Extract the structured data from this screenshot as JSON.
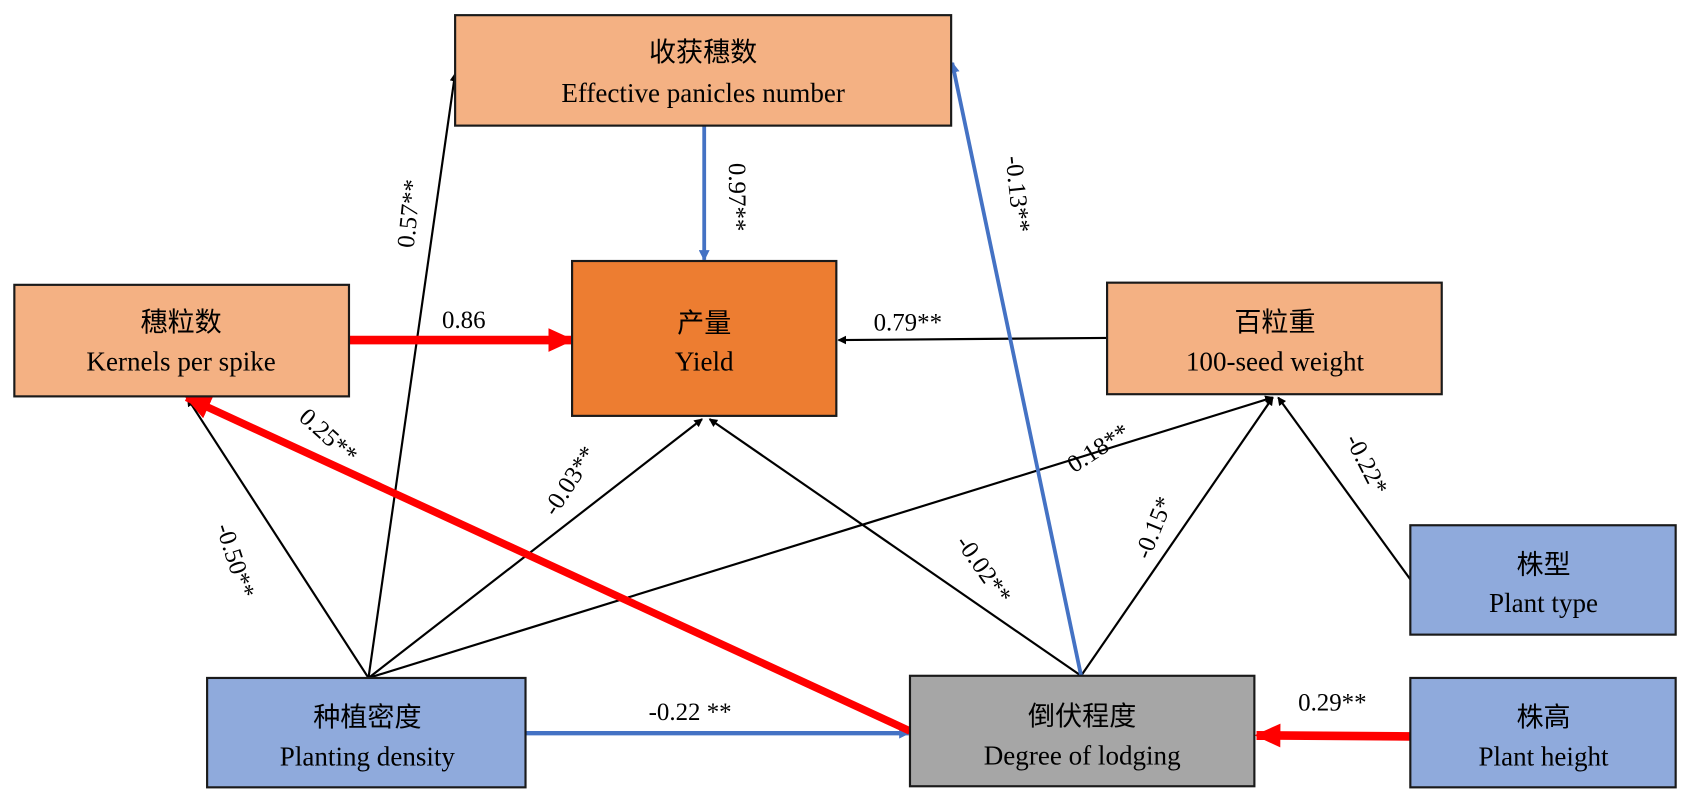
{
  "colors": {
    "outcome": "#ED7D31",
    "component": "#F4B183",
    "factor": "#8FAADC",
    "lodging": "#A6A6A6",
    "positive_strong": "#FF0000",
    "negative": "#4472C4",
    "neutral": "#000000"
  },
  "nodes": {
    "panicles": {
      "zh": "收获穗数",
      "en": "Effective panicles number"
    },
    "yield": {
      "zh": "产量",
      "en": "Yield"
    },
    "kernels": {
      "zh": "穗粒数",
      "en": "Kernels per spike"
    },
    "seed_weight": {
      "zh": "百粒重",
      "en": "100-seed weight"
    },
    "plant_type": {
      "zh": "株型",
      "en": "Plant type"
    },
    "density": {
      "zh": "种植密度",
      "en": "Planting density"
    },
    "lodging": {
      "zh": "倒伏程度",
      "en": "Degree of lodging"
    },
    "plant_height": {
      "zh": "株高",
      "en": "Plant height"
    }
  },
  "edges": {
    "panicles_yield": "0.97**",
    "kernels_yield": "0.86",
    "seed_weight_yield": "0.79**",
    "density_panicles": "0.57**",
    "density_kernels": "-0.50**",
    "density_yield": "-0.03**",
    "density_seed_weight": "0.18**",
    "lodging_panicles": "-0.13**",
    "lodging_kernels": "0.25**",
    "lodging_yield": "-0.02**",
    "lodging_seed_weight": "-0.15*",
    "plant_type_seed_weight": "-0.22*",
    "density_lodging": "-0.22 **",
    "plant_height_lodging": "0.29**"
  }
}
